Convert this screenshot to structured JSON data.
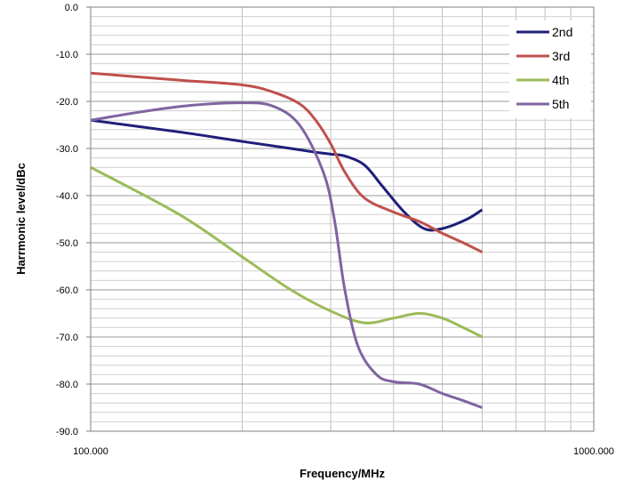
{
  "chart_data": {
    "type": "line",
    "title": "",
    "xlabel": "Frequency/MHz",
    "ylabel": "Harrmonic level/dBc",
    "x_scale": "log",
    "xlim": [
      100,
      1000
    ],
    "ylim": [
      -90,
      0
    ],
    "x_tick_labels": [
      "100.000",
      "1000.000"
    ],
    "y_tick_labels": [
      "0.0",
      "-10.0",
      "-20.0",
      "-30.0",
      "-40.0",
      "-50.0",
      "-60.0",
      "-70.0",
      "-80.0",
      "-90.0"
    ],
    "grid": true,
    "legend_position": "top-right",
    "series": [
      {
        "name": "2nd",
        "color": "#1f1f7a",
        "x": [
          100,
          150,
          200,
          250,
          280,
          300,
          320,
          350,
          380,
          420,
          460,
          500,
          560,
          600
        ],
        "y": [
          -24,
          -26.5,
          -28.5,
          -30,
          -30.8,
          -31.2,
          -31.6,
          -33.5,
          -38,
          -43.5,
          -47,
          -47,
          -45,
          -43
        ]
      },
      {
        "name": "3rd",
        "color": "#c0504d",
        "x": [
          100,
          150,
          200,
          230,
          260,
          280,
          300,
          320,
          350,
          400,
          450,
          500,
          550,
          600
        ],
        "y": [
          -14,
          -15.5,
          -16.5,
          -18,
          -20.5,
          -24,
          -29,
          -35,
          -40.5,
          -43.5,
          -45.5,
          -48,
          -50,
          -52
        ]
      },
      {
        "name": "4th",
        "color": "#9bbb59",
        "x": [
          100,
          150,
          200,
          250,
          300,
          350,
          400,
          450,
          500,
          550,
          600
        ],
        "y": [
          -34,
          -44,
          -53,
          -60,
          -64.5,
          -67,
          -66,
          -65,
          -66,
          -68,
          -70
        ]
      },
      {
        "name": "5th",
        "color": "#8064a2",
        "x": [
          100,
          130,
          160,
          200,
          230,
          260,
          290,
          305,
          320,
          340,
          370,
          400,
          450,
          500,
          550,
          600
        ],
        "y": [
          -24,
          -22,
          -20.8,
          -20.3,
          -21,
          -25,
          -35,
          -45,
          -60,
          -72,
          -78,
          -79.5,
          -80,
          -82,
          -83.5,
          -85
        ]
      }
    ]
  }
}
